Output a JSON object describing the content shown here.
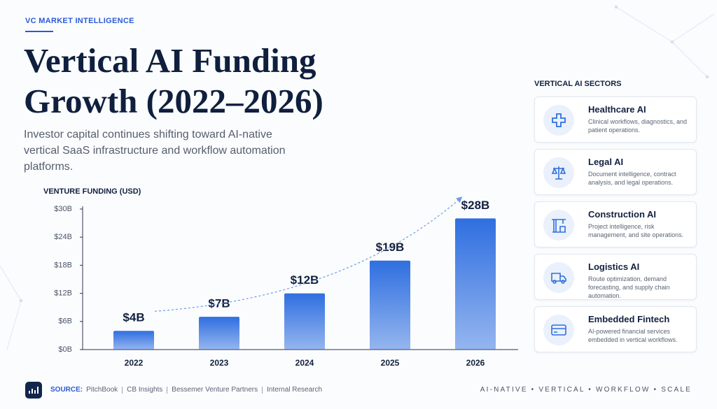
{
  "header": {
    "kicker": "VC MARKET INTELLIGENCE",
    "title": "Vertical AI Funding Growth (2022–2026)",
    "subtitle": "Investor capital continues shifting toward AI-native vertical SaaS infrastructure and workflow automation platforms."
  },
  "chart_data": {
    "type": "bar",
    "y_label": "VENTURE FUNDING (USD)",
    "categories": [
      "2022",
      "2023",
      "2024",
      "2025",
      "2026"
    ],
    "values": [
      4,
      7,
      12,
      19,
      28
    ],
    "value_labels": [
      "$4B",
      "$7B",
      "$12B",
      "$19B",
      "$28B"
    ],
    "color": "#2f6fe0",
    "ylim": [
      0,
      30
    ],
    "yticks": [
      {
        "value": 0,
        "label": "$0B"
      },
      {
        "value": 6,
        "label": "$6B"
      },
      {
        "value": 12,
        "label": "$12B"
      },
      {
        "value": 18,
        "label": "$18B"
      },
      {
        "value": 24,
        "label": "$24B"
      },
      {
        "value": 30,
        "label": "$30B"
      }
    ],
    "grid": false
  },
  "sectors": {
    "title": "VERTICAL AI SECTORS",
    "items": [
      {
        "name": "Healthcare AI",
        "description": "Clinical workflows, diagnostics, and patient operations."
      },
      {
        "name": "Legal AI",
        "description": "Document intelligence, contract analysis, and legal operations."
      },
      {
        "name": "Construction AI",
        "description": "Project intelligence, risk management, and site operations."
      },
      {
        "name": "Logistics AI",
        "description": "Route optimization, demand forecasting, and supply chain automation."
      },
      {
        "name": "Embedded Fintech",
        "description": "AI-powered financial services embedded in vertical workflows."
      }
    ]
  },
  "footer": {
    "source_label": "SOURCE:",
    "sources": [
      "PitchBook",
      "CB Insights",
      "Bessemer Venture Partners",
      "Internal Research"
    ],
    "tagline": "AI-NATIVE • VERTICAL • WORKFLOW • SCALE"
  }
}
